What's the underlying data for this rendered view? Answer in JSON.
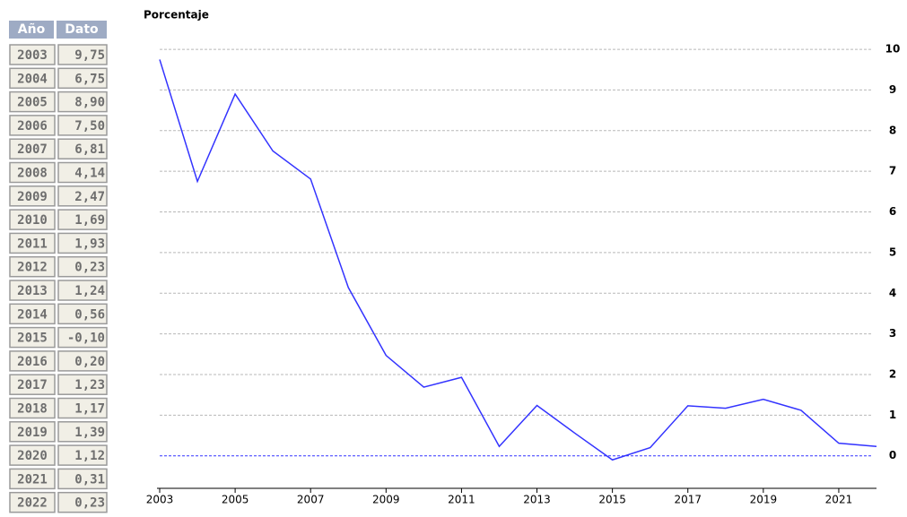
{
  "table": {
    "headers": [
      "Año",
      "Dato"
    ]
  },
  "chart_data": {
    "type": "line",
    "ylabel": "Porcentaje",
    "x": [
      2003,
      2004,
      2005,
      2006,
      2007,
      2008,
      2009,
      2010,
      2011,
      2012,
      2013,
      2014,
      2015,
      2016,
      2017,
      2018,
      2019,
      2020,
      2021,
      2022
    ],
    "series": [
      {
        "color": "#3333ff",
        "values": [
          9.75,
          6.75,
          8.9,
          7.5,
          6.81,
          4.14,
          2.47,
          1.69,
          1.93,
          0.23,
          1.24,
          0.56,
          -0.1,
          0.2,
          1.23,
          1.17,
          1.39,
          1.12,
          0.31,
          0.23
        ],
        "value_labels": [
          "9,75",
          "6,75",
          "8,90",
          "7,50",
          "6,81",
          "4,14",
          "2,47",
          "1,69",
          "1,93",
          "0,23",
          "1,24",
          "0,56",
          "-0,10",
          "0,20",
          "1,23",
          "1,17",
          "1,39",
          "1,12",
          "0,31",
          "0,23"
        ]
      }
    ],
    "xlim": [
      2003,
      2022
    ],
    "xticks": [
      2003,
      2005,
      2007,
      2009,
      2011,
      2013,
      2015,
      2017,
      2019,
      2021
    ],
    "ylim": [
      -0.8,
      10.2
    ],
    "yticks": [
      0,
      1,
      2,
      3,
      4,
      5,
      6,
      7,
      8,
      9,
      10
    ],
    "grid": true,
    "zero_line_color": "#3333ff"
  }
}
